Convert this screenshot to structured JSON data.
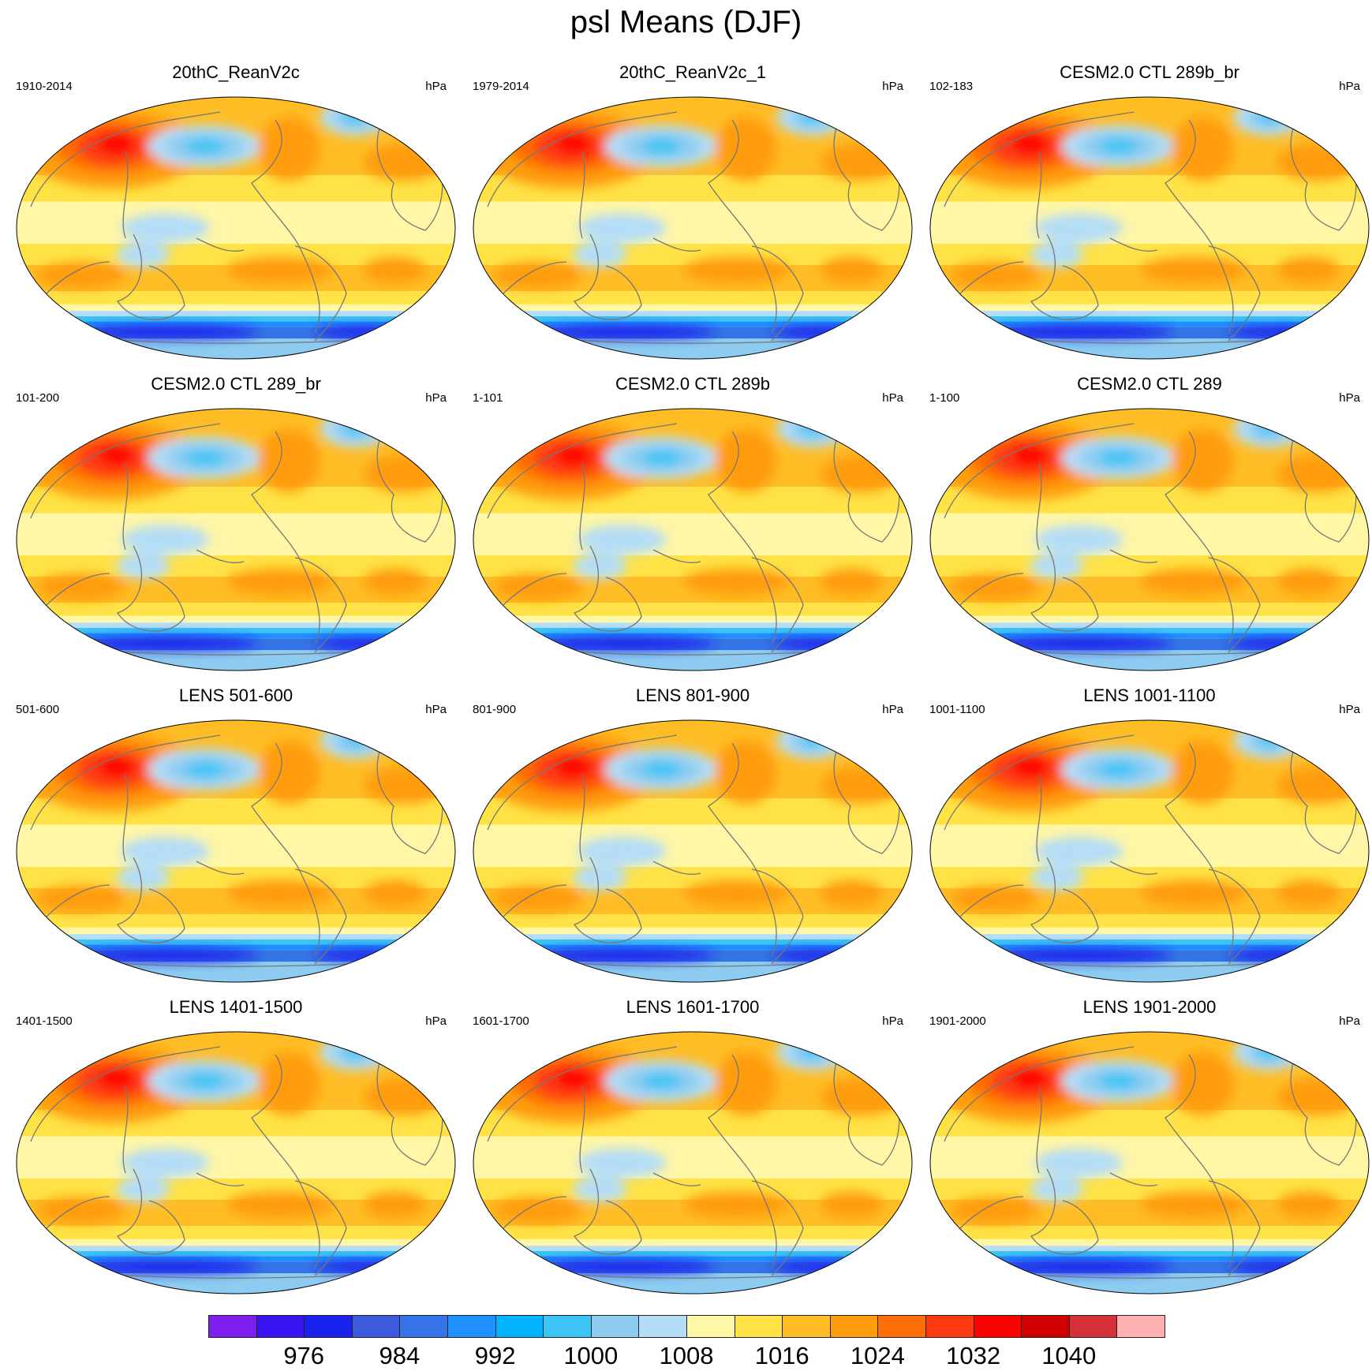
{
  "title": "psl Means (DJF)",
  "panels": [
    {
      "title": "20thC_ReanV2c",
      "period": "1910-2014",
      "units": "hPa"
    },
    {
      "title": "20thC_ReanV2c_1",
      "period": "1979-2014",
      "units": "hPa"
    },
    {
      "title": "CESM2.0 CTL 289b_br",
      "period": "102-183",
      "units": "hPa"
    },
    {
      "title": "CESM2.0 CTL 289_br",
      "period": "101-200",
      "units": "hPa"
    },
    {
      "title": "CESM2.0 CTL 289b",
      "period": "1-101",
      "units": "hPa"
    },
    {
      "title": "CESM2.0 CTL 289",
      "period": "1-100",
      "units": "hPa"
    },
    {
      "title": "LENS 501-600",
      "period": "501-600",
      "units": "hPa"
    },
    {
      "title": "LENS 801-900",
      "period": "801-900",
      "units": "hPa"
    },
    {
      "title": "LENS 1001-1100",
      "period": "1001-1100",
      "units": "hPa"
    },
    {
      "title": "LENS 1401-1500",
      "period": "1401-1500",
      "units": "hPa"
    },
    {
      "title": "LENS 1601-1700",
      "period": "1601-1700",
      "units": "hPa"
    },
    {
      "title": "LENS 1901-2000",
      "period": "1901-2000",
      "units": "hPa"
    }
  ],
  "colorbar": {
    "colors": [
      "#7f1fef",
      "#3a14f2",
      "#1a22ee",
      "#3b5bdc",
      "#3474e6",
      "#1e90ff",
      "#00b4ff",
      "#3cc4f5",
      "#8dccf0",
      "#b4ddf7",
      "#fff6a6",
      "#ffe246",
      "#ffbd25",
      "#ff9c0c",
      "#ff6d05",
      "#ff3a12",
      "#ff0000",
      "#d10000",
      "#d63038",
      "#ffb0b0"
    ],
    "labels": [
      "976",
      "984",
      "992",
      "1000",
      "1008",
      "1016",
      "1024",
      "1032",
      "1040"
    ]
  }
}
